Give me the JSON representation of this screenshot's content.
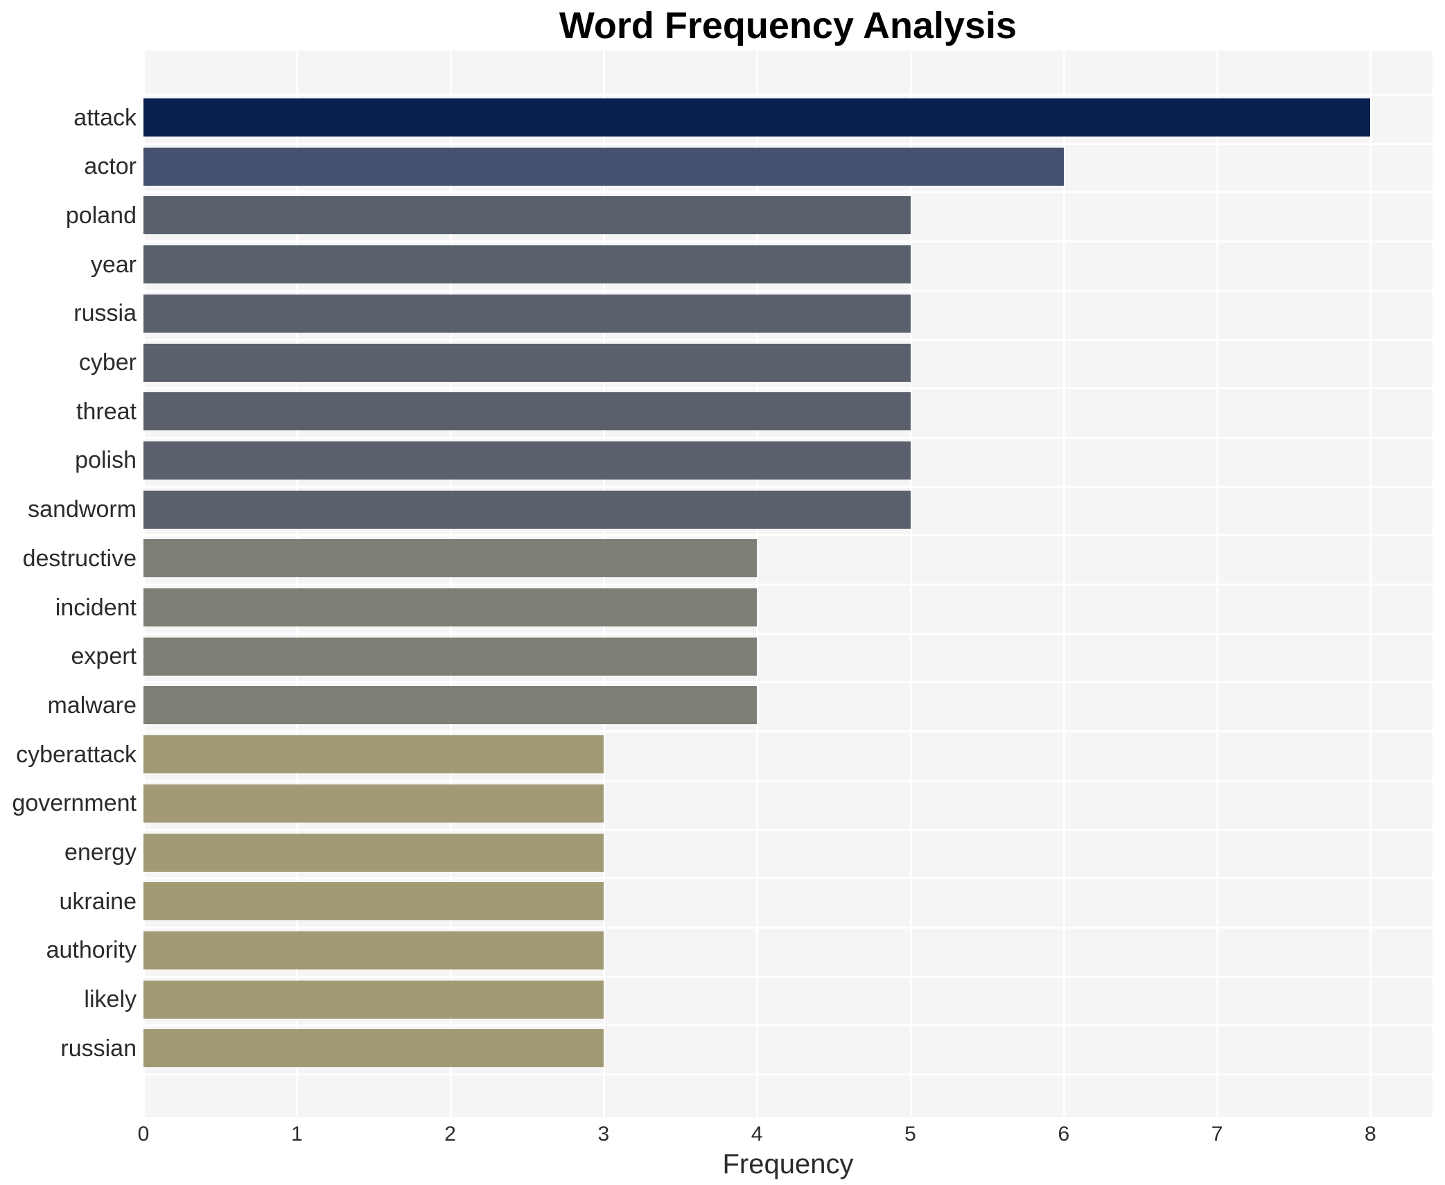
{
  "chart_data": {
    "type": "bar",
    "orientation": "horizontal",
    "title": "Word Frequency Analysis",
    "xlabel": "Frequency",
    "ylabel": "",
    "categories": [
      "attack",
      "actor",
      "poland",
      "year",
      "russia",
      "cyber",
      "threat",
      "polish",
      "sandworm",
      "destructive",
      "incident",
      "expert",
      "malware",
      "cyberattack",
      "government",
      "energy",
      "ukraine",
      "authority",
      "likely",
      "russian"
    ],
    "values": [
      8,
      6,
      5,
      5,
      5,
      5,
      5,
      5,
      5,
      4,
      4,
      4,
      4,
      3,
      3,
      3,
      3,
      3,
      3,
      3
    ],
    "xlim": [
      0,
      8.4
    ],
    "x_ticks": [
      "0",
      "1",
      "2",
      "3",
      "4",
      "5",
      "6",
      "7",
      "8"
    ],
    "grid": true,
    "legend": "none",
    "colors": {
      "plot_background": "#f5f5f6",
      "gridline": "#ffffff",
      "value_8": "#0a2150",
      "value_6": "#45516e",
      "value_5": "#5b606d",
      "value_4": "#7e7d76",
      "value_3": "#a19a74",
      "text": "#2b2b2b",
      "title_text": "#000000"
    }
  }
}
